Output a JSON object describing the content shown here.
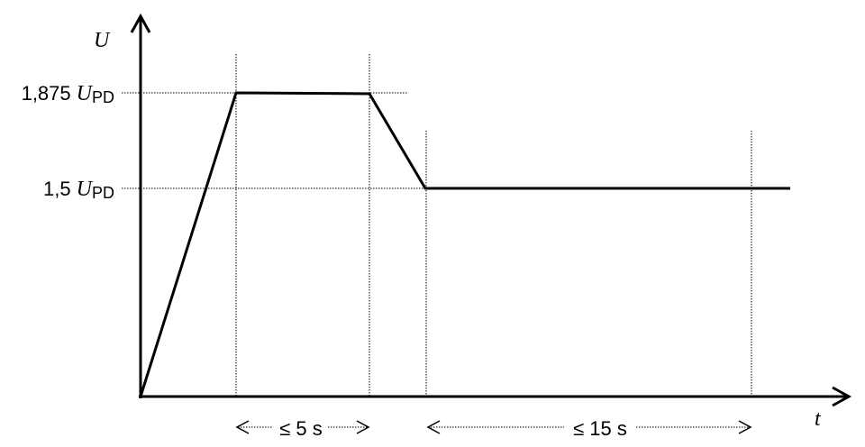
{
  "axes": {
    "y_label": "U",
    "x_label": "t"
  },
  "levels": [
    {
      "factor": "1,875",
      "symbol": "U",
      "subscript": "PD"
    },
    {
      "factor": "1,5",
      "symbol": "U",
      "subscript": "PD"
    }
  ],
  "intervals": [
    {
      "label": "≤ 5 s"
    },
    {
      "label": "≤ 15 s"
    }
  ]
}
